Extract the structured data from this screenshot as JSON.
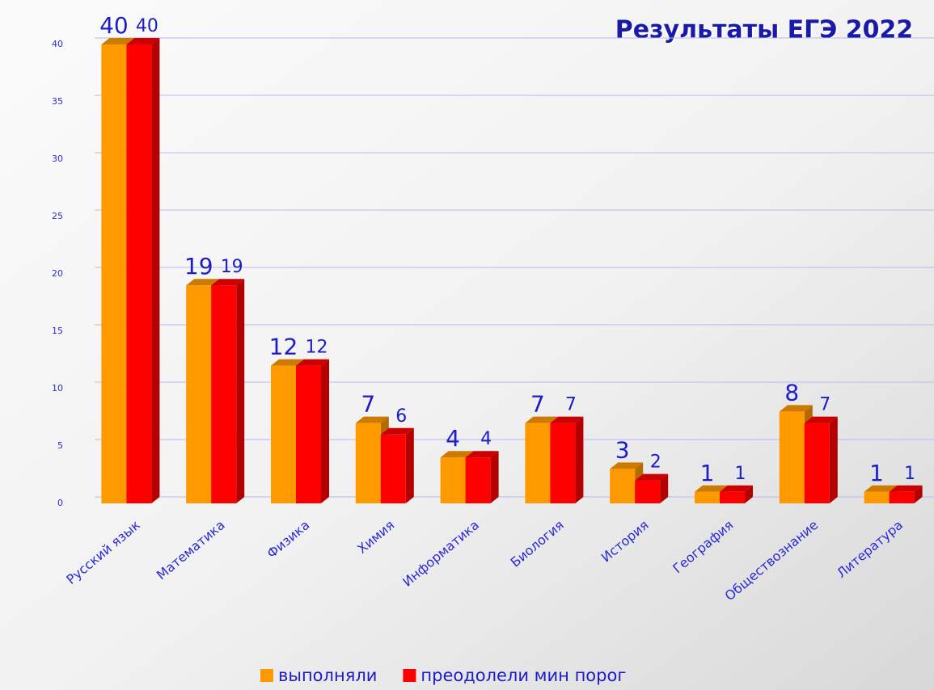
{
  "chart_data": {
    "type": "bar",
    "title": "Результаты ЕГЭ 2022",
    "categories": [
      "Русский язык",
      "Математика",
      "Физика",
      "Химия",
      "Информатика",
      "Биология",
      "История",
      "География",
      "Обществознание",
      "Литература"
    ],
    "series": [
      {
        "name": "выполняли",
        "color": "#ff9900",
        "values": [
          40,
          19,
          12,
          7,
          4,
          7,
          3,
          1,
          8,
          1
        ]
      },
      {
        "name": "преодолели мин порог",
        "color": "#ff0000",
        "values": [
          40,
          19,
          12,
          6,
          4,
          7,
          2,
          1,
          7,
          1
        ]
      }
    ],
    "ylim": [
      0,
      40
    ],
    "yticks": [
      0,
      5,
      10,
      15,
      20,
      25,
      30,
      35,
      40
    ],
    "grid": true
  }
}
